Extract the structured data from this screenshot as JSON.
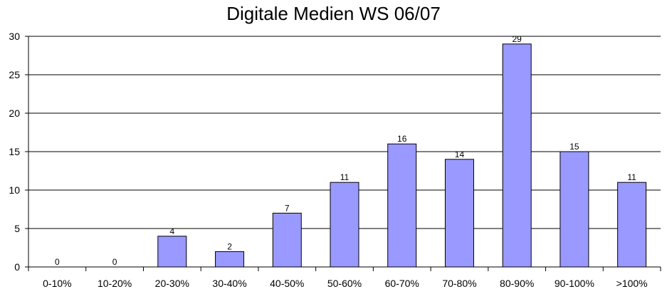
{
  "chart_data": {
    "type": "bar",
    "title": "Digitale Medien WS 06/07",
    "xlabel": "",
    "ylabel": "",
    "categories": [
      "0-10%",
      "10-20%",
      "20-30%",
      "30-40%",
      "40-50%",
      "50-60%",
      "60-70%",
      "70-80%",
      "80-90%",
      "90-100%",
      ">100%"
    ],
    "values": [
      0,
      0,
      4,
      2,
      7,
      11,
      16,
      14,
      29,
      15,
      11
    ],
    "ylim": [
      0,
      30
    ],
    "yticks": [
      0,
      5,
      10,
      15,
      20,
      25,
      30
    ],
    "grid": true,
    "legend": "none",
    "data_labels": true,
    "colors": {
      "bar_fill": "#9999ff",
      "bar_stroke": "#000000",
      "grid": "#000000"
    }
  }
}
